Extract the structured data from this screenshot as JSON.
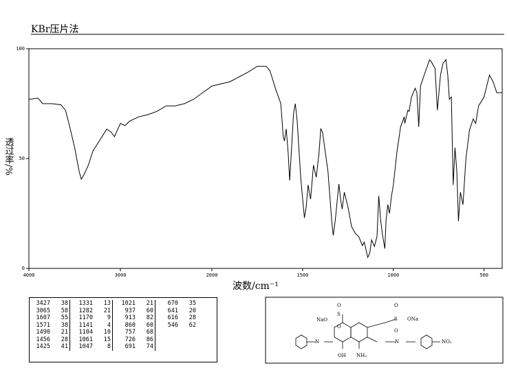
{
  "chart_data": {
    "type": "line",
    "title": "KBr压片法",
    "xlabel": "波数/cm⁻¹",
    "ylabel": "透过率/%",
    "xlim": [
      4000,
      400
    ],
    "x_break": 2000,
    "xticks": [
      4000,
      3000,
      2000,
      1500,
      1000,
      500
    ],
    "ylim": [
      0,
      100
    ],
    "yticks": [
      0,
      50,
      100
    ],
    "series": [
      {
        "color": "#000000",
        "x": [
          4000,
          3900,
          3850,
          3750,
          3650,
          3600,
          3550,
          3500,
          3450,
          3427,
          3400,
          3350,
          3300,
          3200,
          3150,
          3100,
          3065,
          3000,
          2950,
          2900,
          2800,
          2700,
          2600,
          2500,
          2400,
          2300,
          2200,
          2100,
          2000,
          1900,
          1800,
          1750,
          1700,
          1680,
          1650,
          1620,
          1607,
          1600,
          1590,
          1580,
          1571,
          1560,
          1550,
          1540,
          1530,
          1510,
          1490,
          1480,
          1470,
          1456,
          1440,
          1425,
          1410,
          1400,
          1390,
          1380,
          1360,
          1340,
          1331,
          1320,
          1300,
          1290,
          1282,
          1270,
          1250,
          1230,
          1210,
          1190,
          1170,
          1160,
          1141,
          1130,
          1120,
          1104,
          1090,
          1080,
          1070,
          1061,
          1047,
          1040,
          1030,
          1021,
          1010,
          1000,
          980,
          960,
          940,
          937,
          920,
          913,
          900,
          880,
          870,
          860,
          850,
          830,
          800,
          790,
          770,
          757,
          740,
          726,
          710,
          700,
          691,
          680,
          670,
          660,
          650,
          641,
          630,
          616,
          600,
          580,
          560,
          546,
          530,
          500,
          470,
          450,
          430,
          400
        ],
        "values": [
          77,
          77.5,
          75,
          75,
          74.5,
          72,
          64,
          55,
          44,
          40.6,
          42.5,
          47,
          53.5,
          60,
          63.4,
          62,
          60,
          66,
          65,
          67,
          69,
          70,
          71.5,
          74,
          74,
          75,
          77,
          80,
          83,
          85,
          89.4,
          92,
          92,
          90,
          82,
          75,
          60,
          58,
          63.5,
          53,
          40,
          56,
          70.6,
          75,
          67,
          41,
          23,
          28,
          38,
          31.5,
          47,
          41.5,
          52,
          63.5,
          62,
          56,
          44,
          22,
          15,
          22,
          38.4,
          31,
          27,
          34.7,
          28,
          19,
          16,
          14.4,
          10.3,
          12,
          5,
          7,
          13,
          10,
          14.4,
          33,
          22,
          16,
          9,
          22,
          29,
          25,
          33,
          38,
          53,
          64.4,
          69,
          66,
          72,
          71.5,
          78,
          82,
          80,
          64.4,
          83,
          88,
          95,
          94,
          91,
          72,
          88,
          93.4,
          95,
          88,
          77,
          78,
          38,
          55,
          44,
          21.5,
          34.7,
          29,
          50,
          63,
          68,
          66,
          74,
          78,
          88,
          85,
          80,
          80
        ]
      }
    ]
  },
  "peak_table": [
    [
      [
        3427,
        38
      ],
      [
        3065,
        58
      ],
      [
        1607,
        55
      ],
      [
        1571,
        38
      ],
      [
        1490,
        21
      ],
      [
        1456,
        28
      ],
      [
        1425,
        41
      ]
    ],
    [
      [
        1331,
        13
      ],
      [
        1282,
        21
      ],
      [
        1170,
        9
      ],
      [
        1141,
        4
      ],
      [
        1104,
        10
      ],
      [
        1061,
        15
      ],
      [
        1047,
        8
      ]
    ],
    [
      [
        1021,
        21
      ],
      [
        937,
        60
      ],
      [
        913,
        82
      ],
      [
        860,
        60
      ],
      [
        757,
        68
      ],
      [
        726,
        86
      ],
      [
        691,
        74
      ]
    ],
    [
      [
        670,
        35
      ],
      [
        641,
        20
      ],
      [
        616,
        28
      ],
      [
        546,
        62
      ]
    ]
  ],
  "structure": {
    "labels": [
      "O",
      "S",
      "O",
      "NaO",
      "O",
      "S",
      "O",
      "ONa",
      "N",
      "N",
      "OH",
      "NH₂",
      "NO₂"
    ]
  }
}
